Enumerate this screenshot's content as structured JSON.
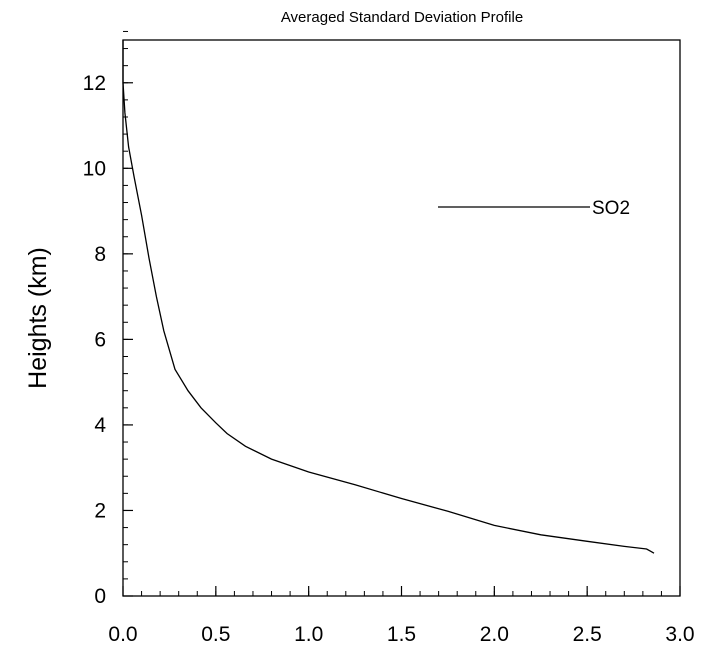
{
  "chart_data": {
    "type": "line",
    "title": "Averaged Standard Deviation Profile",
    "xlabel": "",
    "ylabel": "Heights (km)",
    "xlim": [
      0,
      3
    ],
    "ylim": [
      0,
      13
    ],
    "x_ticks": [
      0,
      0.5,
      1,
      1.5,
      2,
      2.5,
      3
    ],
    "x_tick_labels": [
      "0.0",
      "0.5",
      "1.0",
      "1.5",
      "2.0",
      "2.5",
      "3.0"
    ],
    "x_minor_step": 0.1,
    "y_ticks": [
      0,
      2,
      4,
      6,
      8,
      10,
      12
    ],
    "y_tick_labels": [
      "0",
      "2",
      "4",
      "6",
      "8",
      "10",
      "12"
    ],
    "y_minor_step": 0.4,
    "grid": false,
    "legend_position": "upper-right",
    "line_color": "#000000",
    "series": [
      {
        "name": "SO2",
        "points": [
          [
            0.0,
            13.0
          ],
          [
            0.0,
            12.0
          ],
          [
            0.01,
            11.3
          ],
          [
            0.03,
            10.5
          ],
          [
            0.06,
            9.8
          ],
          [
            0.1,
            8.9
          ],
          [
            0.14,
            7.9
          ],
          [
            0.18,
            7.0
          ],
          [
            0.22,
            6.2
          ],
          [
            0.28,
            5.3
          ],
          [
            0.35,
            4.8
          ],
          [
            0.42,
            4.4
          ],
          [
            0.5,
            4.05
          ],
          [
            0.56,
            3.8
          ],
          [
            0.66,
            3.5
          ],
          [
            0.8,
            3.2
          ],
          [
            1.0,
            2.9
          ],
          [
            1.25,
            2.6
          ],
          [
            1.5,
            2.28
          ],
          [
            1.75,
            1.98
          ],
          [
            2.0,
            1.65
          ],
          [
            2.25,
            1.43
          ],
          [
            2.5,
            1.28
          ],
          [
            2.7,
            1.16
          ],
          [
            2.82,
            1.1
          ],
          [
            2.84,
            1.05
          ],
          [
            2.86,
            1.0
          ]
        ]
      }
    ]
  }
}
